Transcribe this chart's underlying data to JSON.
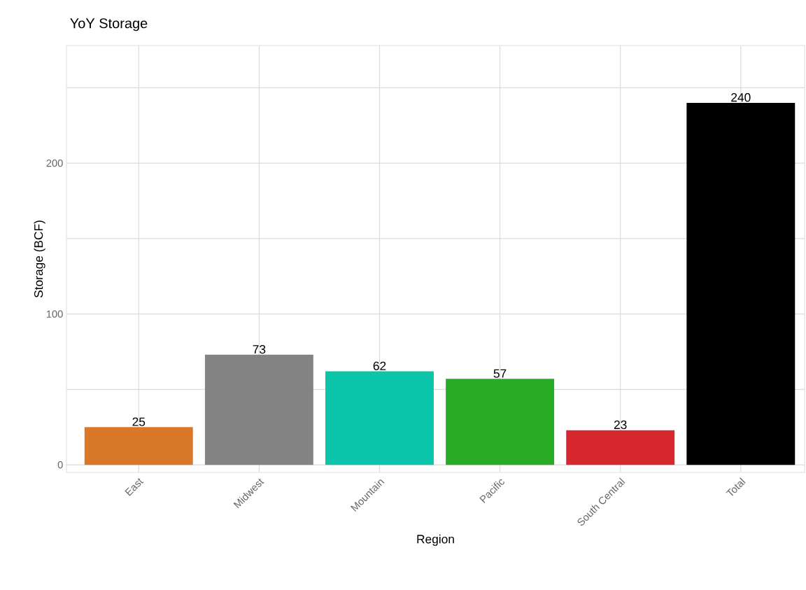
{
  "chart_data": {
    "type": "bar",
    "title": "YoY Storage",
    "xlabel": "Region",
    "ylabel": "Storage (BCF)",
    "categories": [
      "East",
      "Midwest",
      "Mountain",
      "Pacific",
      "South Central",
      "Total"
    ],
    "values": [
      25,
      73,
      62,
      57,
      23,
      240
    ],
    "colors": [
      "#d97828",
      "#838383",
      "#0cc4aa",
      "#29ab26",
      "#d7282f",
      "#000000"
    ],
    "ylim": [
      -5,
      278
    ],
    "yticks": [
      0,
      {
        "value": 50,
        "label": null
      },
      100,
      {
        "value": 150,
        "label": null
      },
      200,
      {
        "value": 250,
        "label": null
      }
    ],
    "grid": true,
    "data_labels": true
  }
}
